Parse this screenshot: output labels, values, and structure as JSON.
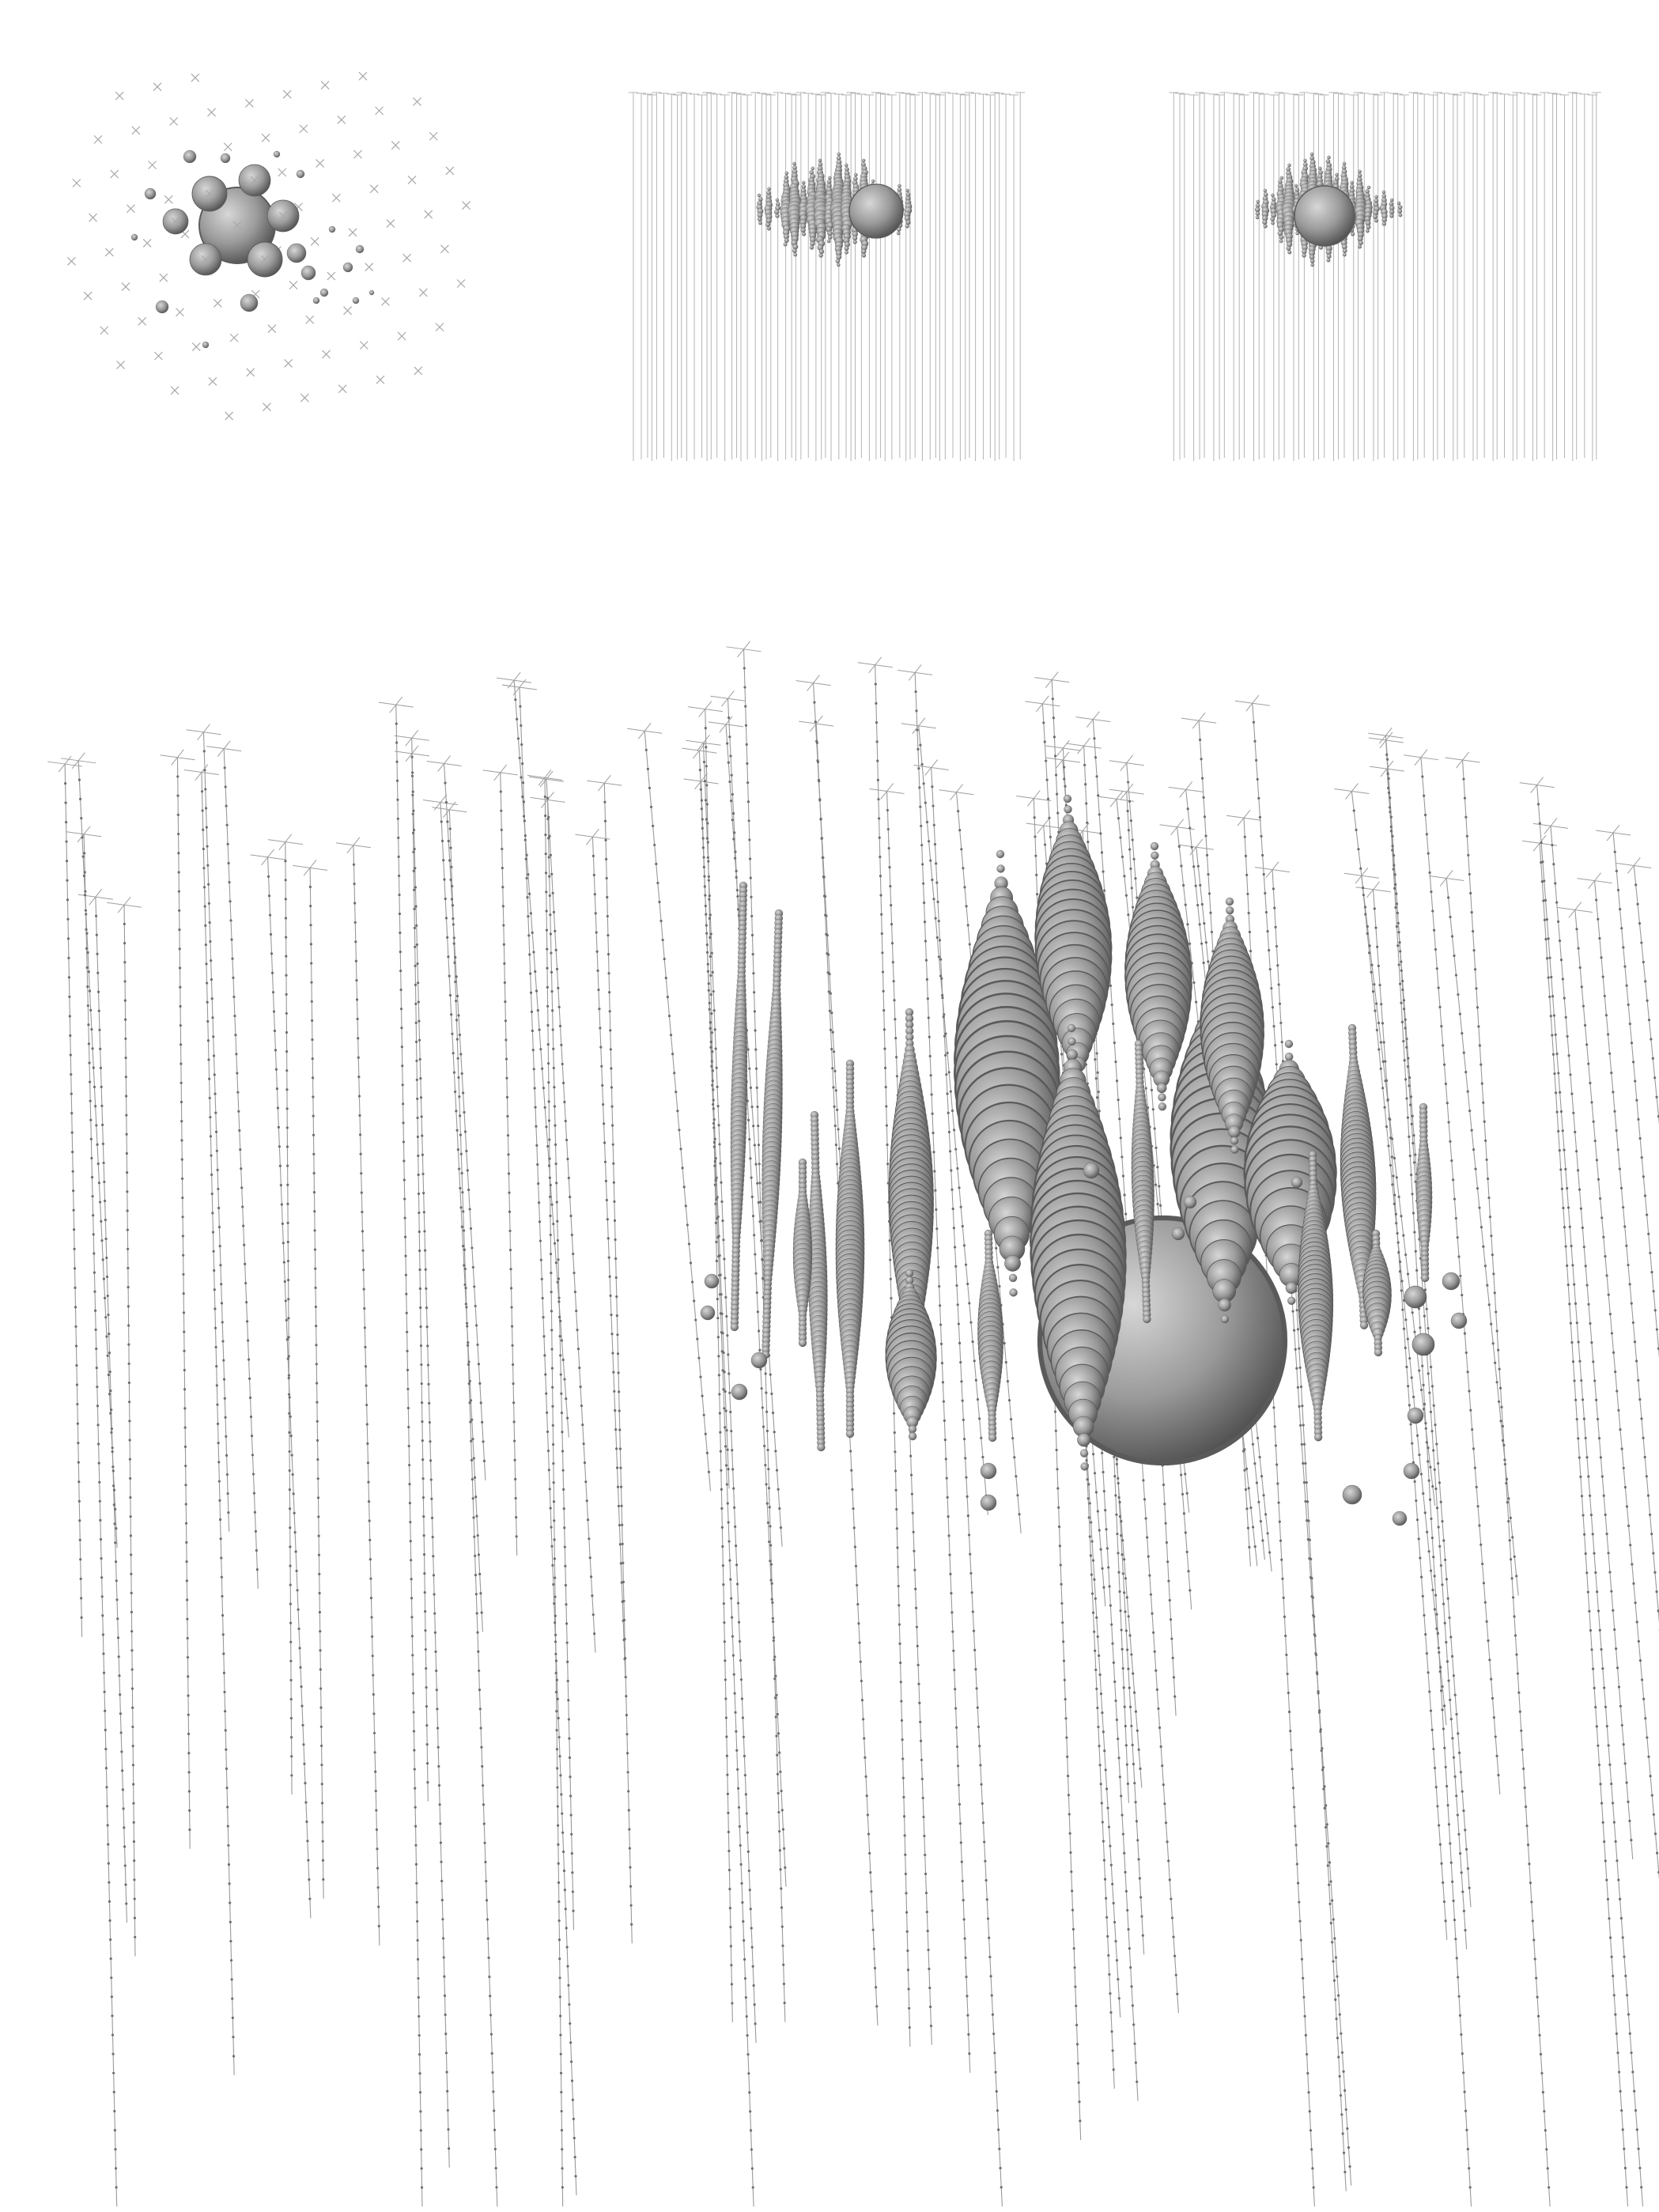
{
  "figure": {
    "views": [
      {
        "name": "top-view",
        "caption": ""
      },
      {
        "name": "side-view-1",
        "caption": ""
      },
      {
        "name": "side-view-2",
        "caption": ""
      },
      {
        "name": "perspective-view",
        "caption": ""
      }
    ],
    "colors": {
      "background": "#ffffff",
      "string_line": "#9a9a9a",
      "dom_dot": "#6f6f6f",
      "marker": "#a8a8a8",
      "hit_light": "#d7d7d7",
      "hit_mid": "#9a9a9a",
      "hit_dark": "#4e4e4e"
    },
    "icons": {
      "string_marker": "x-cross-icon",
      "hit_sphere": "shaded-sphere-icon"
    }
  }
}
